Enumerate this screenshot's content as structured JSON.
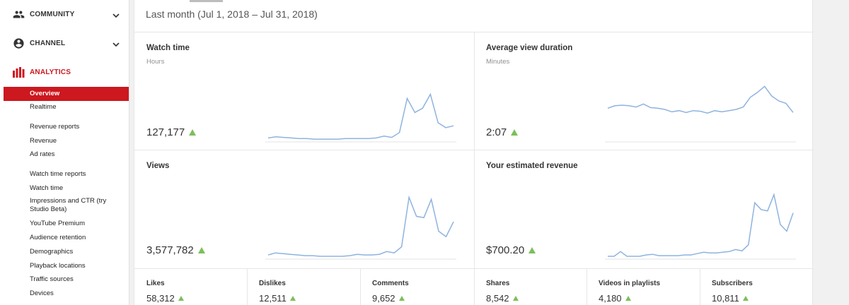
{
  "sidebar": {
    "sections": [
      {
        "label": "COMMUNITY",
        "icon": "people-icon"
      },
      {
        "label": "CHANNEL",
        "icon": "account-circle-icon"
      },
      {
        "label": "ANALYTICS",
        "icon": "bar-chart-icon"
      }
    ],
    "items": [
      "Overview",
      "Realtime",
      "Revenue reports",
      "Revenue",
      "Ad rates",
      "Watch time reports",
      "Watch time",
      "Impressions and CTR (try Studio Beta)",
      "YouTube Premium",
      "Audience retention",
      "Demographics",
      "Playback locations",
      "Traffic sources",
      "Devices"
    ],
    "active_item": "Overview"
  },
  "header": {
    "date_range": "Last month (Jul 1, 2018 – Jul 31, 2018)"
  },
  "cards": [
    {
      "title": "Watch time",
      "unit": "Hours",
      "value": "127,177",
      "trend": "up",
      "series": [
        3,
        5,
        4,
        3,
        2,
        2,
        1,
        1,
        1,
        1,
        2,
        2,
        2,
        2,
        3,
        6,
        4,
        12,
        68,
        45,
        52,
        75,
        28,
        20,
        23
      ]
    },
    {
      "title": "Average view duration",
      "unit": "Minutes",
      "value": "2:07",
      "trend": "up",
      "series": [
        52,
        56,
        57,
        56,
        54,
        59,
        53,
        52,
        50,
        46,
        48,
        45,
        48,
        47,
        44,
        48,
        46,
        48,
        50,
        54,
        70,
        78,
        88,
        72,
        64,
        60,
        45
      ]
    },
    {
      "title": "Views",
      "unit": "",
      "value": "3,577,782",
      "trend": "up",
      "series": [
        3,
        6,
        5,
        4,
        3,
        2,
        2,
        1,
        1,
        1,
        1,
        2,
        4,
        3,
        3,
        4,
        8,
        6,
        15,
        88,
        60,
        58,
        85,
        38,
        30,
        52
      ]
    },
    {
      "title": "Your estimated revenue",
      "unit": "",
      "value": "$700.20",
      "trend": "up",
      "series": [
        1,
        1,
        8,
        1,
        1,
        1,
        3,
        4,
        2,
        2,
        2,
        2,
        3,
        3,
        5,
        7,
        6,
        6,
        7,
        8,
        11,
        9,
        18,
        80,
        70,
        68,
        92,
        48,
        38,
        65
      ]
    }
  ],
  "stats": [
    {
      "label": "Likes",
      "value": "58,312",
      "trend": "up"
    },
    {
      "label": "Dislikes",
      "value": "12,511",
      "trend": "up"
    },
    {
      "label": "Comments",
      "value": "9,652",
      "trend": "up"
    },
    {
      "label": "Shares",
      "value": "8,542",
      "trend": "up"
    },
    {
      "label": "Videos in playlists",
      "value": "4,180",
      "trend": "up"
    },
    {
      "label": "Subscribers",
      "value": "10,811",
      "trend": "up"
    }
  ],
  "colors": {
    "accent": "#cc181e",
    "line": "#8fb3df",
    "up": "#7cbf5a"
  }
}
